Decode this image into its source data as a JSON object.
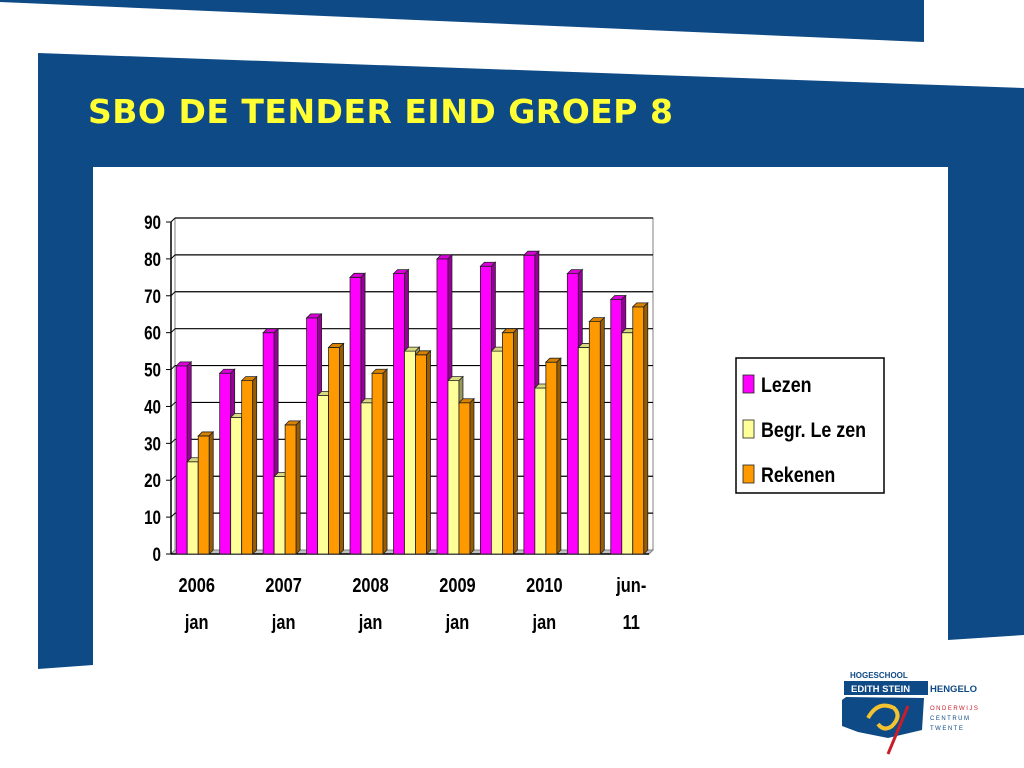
{
  "slide": {
    "title": "SBO DE TENDER EIND GROEP 8"
  },
  "colors": {
    "brand_blue": "#0e4a85",
    "title_yellow": "#ffff33",
    "lezen": "#ff00ff",
    "begr_lezen": "#ffff99",
    "rekenen": "#ff9900"
  },
  "chart_data": {
    "type": "bar",
    "title": "",
    "xlabel": "",
    "ylabel": "",
    "ylim": [
      0,
      90
    ],
    "yticks": [
      "0",
      "10",
      "20",
      "30",
      "40",
      "50",
      "60",
      "70",
      "80",
      "90"
    ],
    "grid": true,
    "three_d": true,
    "legend_position": "right",
    "category_labels": [
      {
        "line1": "2006",
        "line2": "jan"
      },
      {
        "line1": "2007",
        "line2": "jan"
      },
      {
        "line1": "2008",
        "line2": "jan"
      },
      {
        "line1": "2009",
        "line2": "jan"
      },
      {
        "line1": "2010",
        "line2": "jan"
      },
      {
        "line1": "jun-",
        "line2": "11"
      }
    ],
    "series": [
      {
        "name": "Lezen",
        "color": "#ff00ff",
        "values": [
          51,
          49,
          60,
          64,
          75,
          76,
          80,
          78,
          81,
          76,
          69
        ]
      },
      {
        "name": "Begr. Le zen",
        "color": "#ffff99",
        "values": [
          25,
          37,
          21,
          43,
          41,
          55,
          47,
          55,
          45,
          56,
          60
        ]
      },
      {
        "name": "Rekenen",
        "color": "#ff9900",
        "values": [
          32,
          47,
          35,
          56,
          49,
          54,
          41,
          60,
          52,
          63,
          67
        ]
      }
    ]
  },
  "logo": {
    "school_line1": "HOGESCHOOL",
    "school_line2": "EDITH STEIN",
    "city": "HENGELO",
    "sub_line1": "ONDERWIJS",
    "sub_line2": "CENTRUM",
    "sub_line3": "TWENTE"
  }
}
